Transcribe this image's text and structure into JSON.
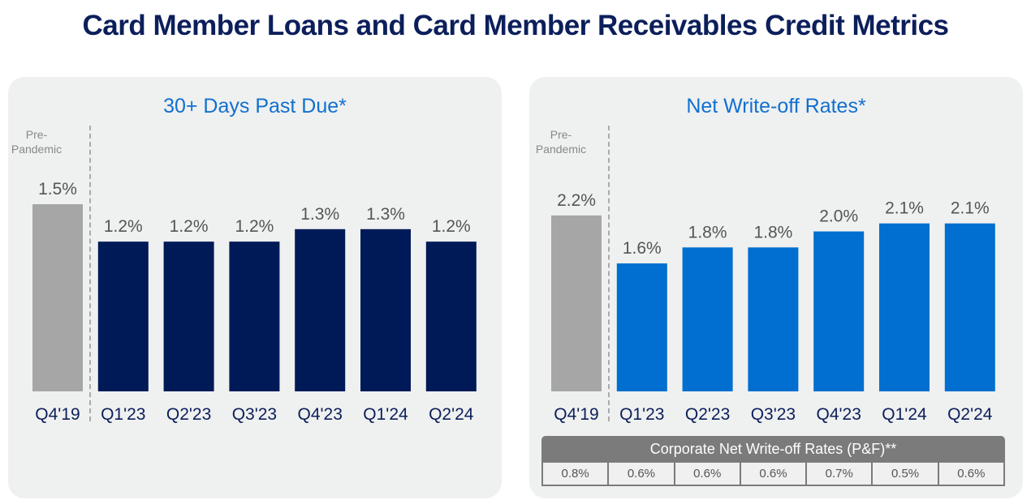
{
  "title": "Card Member Loans and Card Member Receivables Credit Metrics",
  "pre_label": "Pre-\nPandemic",
  "chart_data": [
    {
      "type": "bar",
      "title": "30+ Days Past Due*",
      "categories": [
        "Q4'19",
        "Q1'23",
        "Q2'23",
        "Q3'23",
        "Q4'23",
        "Q1'24",
        "Q2'24"
      ],
      "values": [
        1.5,
        1.2,
        1.2,
        1.2,
        1.3,
        1.3,
        1.2
      ],
      "labels": [
        "1.5%",
        "1.2%",
        "1.2%",
        "1.2%",
        "1.3%",
        "1.3%",
        "1.2%"
      ],
      "colors": {
        "pre": "#a6a6a6",
        "main": "#001a57"
      }
    },
    {
      "type": "bar",
      "title": "Net Write-off Rates*",
      "categories": [
        "Q4'19",
        "Q1'23",
        "Q2'23",
        "Q3'23",
        "Q4'23",
        "Q1'24",
        "Q2'24"
      ],
      "values": [
        2.2,
        1.6,
        1.8,
        1.8,
        2.0,
        2.1,
        2.1
      ],
      "labels": [
        "2.2%",
        "1.6%",
        "1.8%",
        "1.8%",
        "2.0%",
        "2.1%",
        "2.1%"
      ],
      "colors": {
        "pre": "#a6a6a6",
        "main": "#006fcf"
      }
    }
  ],
  "corporate": {
    "title": "Corporate Net Write-off Rates (P&F)**",
    "values": [
      "0.8%",
      "0.6%",
      "0.6%",
      "0.6%",
      "0.7%",
      "0.5%",
      "0.6%"
    ]
  }
}
